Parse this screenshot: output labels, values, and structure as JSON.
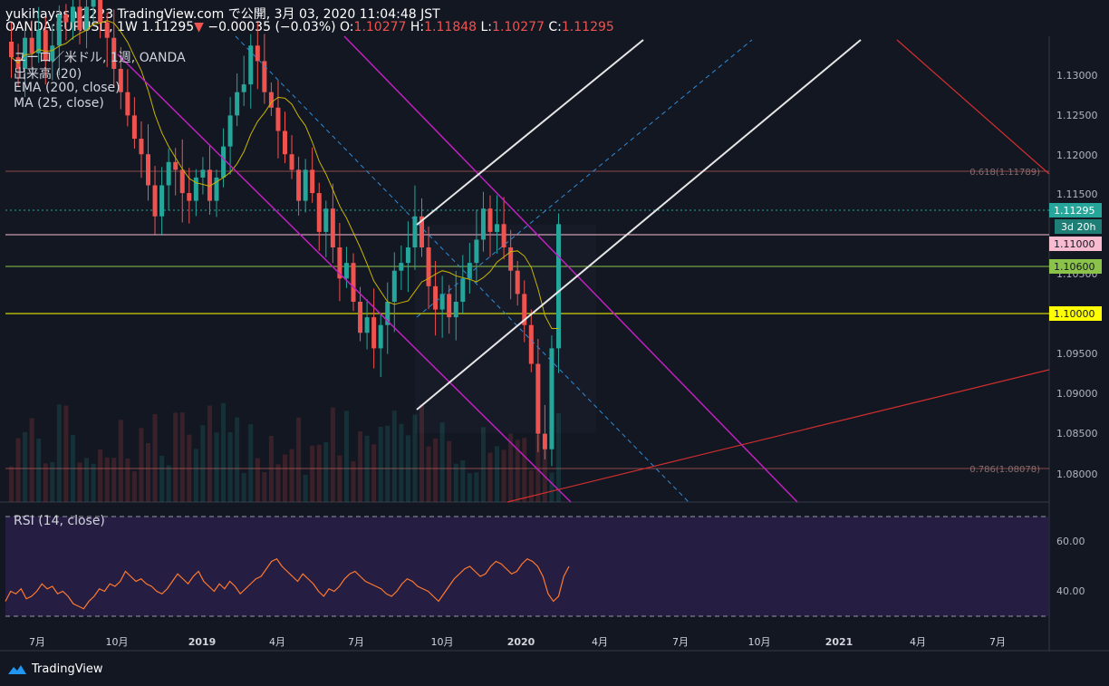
{
  "header": {
    "line1": "yukihayashi2223 TradingView.com で公開, 3月 03, 2020 11:04:48 JST",
    "symbol_prefix": "OANDA:EURUSD, 1W 1.11295",
    "arrow": "▼",
    "change": "−0.00035 (−0.03%)",
    "o_label": "O:",
    "o_value": "1.10277",
    "h_label": "H:",
    "h_value": "1.11848",
    "l_label": "L:",
    "l_value": "1.10277",
    "c_label": "C:",
    "c_value": "1.11295"
  },
  "legend": {
    "title": "ユーロ／米ドル, 1週, OANDA",
    "volume": "出来高 (20)",
    "ema": "EMA (200, close)",
    "ma": "MA (25, close)"
  },
  "rsi_label": "RSI (14, close)",
  "footer": {
    "brand": "TradingView"
  },
  "colors": {
    "background": "#131722",
    "up": "#26a69a",
    "down": "#ef5350",
    "channel_magenta": "#c020c0",
    "channel_white": "#e6e6e6",
    "midline_blue": "#2e8bd8",
    "ma_yellow": "#c8b400",
    "rsi_line": "#ff7a2e",
    "rsi_band": "#2a1f48",
    "level_yellow": "#ffff00",
    "level_green": "#8bc34a",
    "level_pink": "#f8bbd0",
    "trend_red": "#d32f2f"
  },
  "chart_data": [
    {
      "type": "candlestick",
      "symbol": "OANDA:EURUSD",
      "interval": "1W",
      "y_ticks": [
        "1.13000",
        "1.12500",
        "1.12000",
        "1.11500",
        "1.10500",
        "1.09500",
        "1.09000",
        "1.08500",
        "1.08000"
      ],
      "x_ticks": [
        "7月",
        "10月",
        "2019",
        "4月",
        "7月",
        "10月",
        "2020",
        "4月",
        "7月",
        "10月",
        "2021",
        "4月",
        "7月"
      ],
      "ylim": [
        1.0772,
        1.1372
      ],
      "price_tags": [
        {
          "label": "1.11295",
          "value": 1.11295,
          "color": "#26a69a"
        },
        {
          "label": "3d 20h",
          "value": 1.1103,
          "color": "#26a69a",
          "offset": true
        },
        {
          "label": "1.11000",
          "value": 1.11,
          "color": "#f8bbd0"
        },
        {
          "label": "1.10600",
          "value": 1.106,
          "color": "#8bc34a"
        },
        {
          "label": "1.10000",
          "value": 1.1,
          "color": "#ffff00"
        }
      ],
      "fib_levels": [
        {
          "label": "0.618(1.11789)",
          "value": 1.11789
        },
        {
          "label": "0.786(1.08078)",
          "value": 1.08078
        }
      ],
      "candles_close_trend": [
        1.1345,
        1.133,
        1.137,
        1.135,
        1.138,
        1.134,
        1.136,
        1.14,
        1.139,
        1.141,
        1.138,
        1.141,
        1.142,
        1.139,
        1.137,
        1.133,
        1.13,
        1.127,
        1.124,
        1.122,
        1.118,
        1.114,
        1.118,
        1.121,
        1.12,
        1.117,
        1.116,
        1.119,
        1.12,
        1.116,
        1.119,
        1.123,
        1.127,
        1.13,
        1.131,
        1.136,
        1.134,
        1.13,
        1.128,
        1.125,
        1.122,
        1.12,
        1.116,
        1.12,
        1.117,
        1.112,
        1.115,
        1.11,
        1.106,
        1.108,
        1.103,
        1.099,
        1.101,
        1.097,
        1.1,
        1.103,
        1.107,
        1.108,
        1.11,
        1.114,
        1.11,
        1.105,
        1.102,
        1.104,
        1.101,
        1.103,
        1.106,
        1.108,
        1.111,
        1.115,
        1.112,
        1.113,
        1.11,
        1.107,
        1.104,
        1.1,
        1.095,
        1.086,
        1.084,
        1.097,
        1.113
      ]
    },
    {
      "type": "line",
      "title": "RSI (14, close)",
      "y_ticks": [
        "60.00",
        "40.00"
      ],
      "bands": [
        30,
        70
      ],
      "ylim": [
        25,
        75
      ],
      "values": [
        36,
        40,
        39,
        41,
        37,
        38,
        40,
        43,
        41,
        42,
        39,
        40,
        38,
        35,
        34,
        33,
        36,
        38,
        41,
        40,
        43,
        42,
        44,
        48,
        46,
        44,
        45,
        43,
        42,
        40,
        39,
        41,
        44,
        47,
        45,
        43,
        46,
        48,
        44,
        42,
        40,
        43,
        41,
        44,
        42,
        39,
        41,
        43,
        45,
        46,
        49,
        52,
        53,
        50,
        48,
        46,
        44,
        47,
        45,
        43,
        40,
        38,
        41,
        40,
        42,
        45,
        47,
        48,
        46,
        44,
        43,
        42,
        41,
        39,
        38,
        40,
        43,
        45,
        44,
        42,
        41,
        40,
        38,
        36,
        39,
        42,
        45,
        47,
        49,
        50,
        48,
        46,
        47,
        50,
        52,
        51,
        49,
        47,
        48,
        51,
        53,
        52,
        50,
        46,
        39,
        36,
        38,
        46,
        50
      ]
    }
  ]
}
